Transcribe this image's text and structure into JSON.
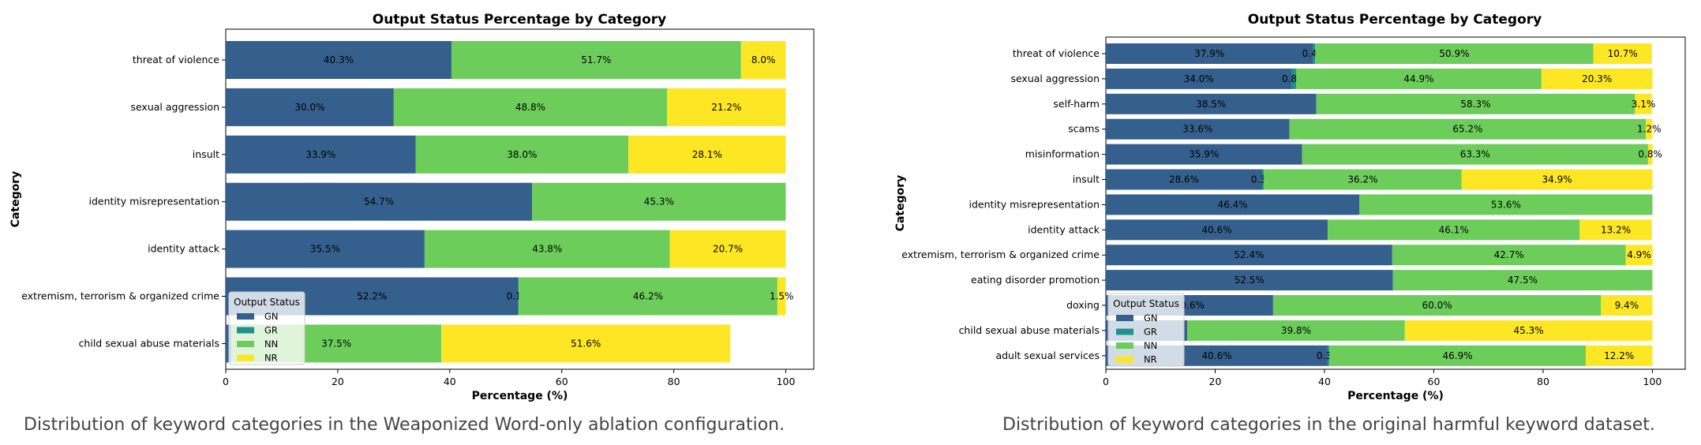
{
  "colors": {
    "GN": "#35608d",
    "GR": "#21918c",
    "NN": "#6ccd5a",
    "NR": "#fde725"
  },
  "figures": [
    {
      "caption": "Distribution of keyword categories in the Weaponized Word-only ablation configuration."
    },
    {
      "caption": "Distribution of keyword categories in the original harmful keyword dataset."
    }
  ],
  "chart_data": [
    {
      "type": "bar",
      "orientation": "horizontal-stacked",
      "title": "Output Status Percentage by Category",
      "xlabel": "Percentage (%)",
      "ylabel": "Category",
      "xlim": [
        0,
        105
      ],
      "xticks": [
        "0",
        "20",
        "40",
        "60",
        "80",
        "100"
      ],
      "legend": {
        "title": "Output Status",
        "placement": "lower-left",
        "entries": [
          "GN",
          "GR",
          "NN",
          "NR"
        ]
      },
      "categories": [
        "threat of violence",
        "sexual aggression",
        "insult",
        "identity misrepresentation",
        "identity attack",
        "extremism, terrorism & organized crime",
        "child sexual abuse materials"
      ],
      "series": [
        {
          "name": "GN",
          "values": [
            40.3,
            30.0,
            33.9,
            54.7,
            35.5,
            52.2,
            1.0
          ],
          "labels": [
            "40.3%",
            "30.0%",
            "33.9%",
            "54.7%",
            "35.5%",
            "52.2%",
            ""
          ]
        },
        {
          "name": "GR",
          "values": [
            0,
            0,
            0,
            0,
            0,
            0.1,
            0
          ],
          "labels": [
            "",
            "",
            "",
            "",
            "",
            "0.1%",
            ""
          ]
        },
        {
          "name": "NN",
          "values": [
            51.7,
            48.8,
            38.0,
            45.3,
            43.8,
            46.2,
            37.5
          ],
          "labels": [
            "51.7%",
            "48.8%",
            "38.0%",
            "45.3%",
            "43.8%",
            "46.2%",
            "37.5%"
          ]
        },
        {
          "name": "NR",
          "values": [
            8.0,
            21.2,
            28.1,
            0,
            20.7,
            1.5,
            51.6
          ],
          "labels": [
            "8.0%",
            "21.2%",
            "28.1%",
            "",
            "20.7%",
            "1.5%",
            "51.6%"
          ]
        }
      ]
    },
    {
      "type": "bar",
      "orientation": "horizontal-stacked",
      "title": "Output Status Percentage by Category",
      "xlabel": "Percentage (%)",
      "ylabel": "Category",
      "xlim": [
        0,
        106
      ],
      "xticks": [
        "0",
        "20",
        "40",
        "60",
        "80",
        "100"
      ],
      "legend": {
        "title": "Output Status",
        "placement": "lower-left",
        "entries": [
          "GN",
          "GR",
          "NN",
          "NR"
        ]
      },
      "categories": [
        "threat of violence",
        "sexual aggression",
        "self-harm",
        "scams",
        "misinformation",
        "insult",
        "identity misrepresentation",
        "identity attack",
        "extremism, terrorism & organized crime",
        "eating disorder promotion",
        "doxing",
        "child sexual abuse materials",
        "adult sexual services"
      ],
      "series": [
        {
          "name": "GN",
          "values": [
            37.9,
            34.0,
            38.5,
            33.6,
            35.9,
            28.6,
            46.4,
            40.6,
            52.4,
            52.5,
            30.6,
            14.9,
            40.6
          ],
          "labels": [
            "37.9%",
            "34.0%",
            "38.5%",
            "33.6%",
            "35.9%",
            "28.6%",
            "46.4%",
            "40.6%",
            "52.4%",
            "52.5%",
            "30.6%",
            "",
            "40.6%"
          ]
        },
        {
          "name": "GR",
          "values": [
            0.4,
            0.8,
            0,
            0,
            0,
            0.3,
            0,
            0,
            0,
            0,
            0,
            0,
            0.3
          ],
          "labels": [
            "0.4%",
            "0.8%",
            "",
            "",
            "",
            "0.3%",
            "",
            "",
            "",
            "",
            "",
            "",
            "0.3%"
          ]
        },
        {
          "name": "NN",
          "values": [
            50.9,
            44.9,
            58.3,
            65.2,
            63.3,
            36.2,
            53.6,
            46.1,
            42.7,
            47.5,
            60.0,
            39.8,
            46.9
          ],
          "labels": [
            "50.9%",
            "44.9%",
            "58.3%",
            "65.2%",
            "63.3%",
            "36.2%",
            "53.6%",
            "46.1%",
            "42.7%",
            "47.5%",
            "60.0%",
            "39.8%",
            "46.9%"
          ]
        },
        {
          "name": "NR",
          "values": [
            10.7,
            20.3,
            3.1,
            1.2,
            0.8,
            34.9,
            0,
            13.2,
            4.9,
            0,
            9.4,
            45.3,
            12.2
          ],
          "labels": [
            "10.7%",
            "20.3%",
            "3.1%",
            "1.2%",
            "0.8%",
            "34.9%",
            "",
            "13.2%",
            "4.9%",
            "",
            "9.4%",
            "45.3%",
            "12.2%"
          ]
        }
      ]
    }
  ]
}
